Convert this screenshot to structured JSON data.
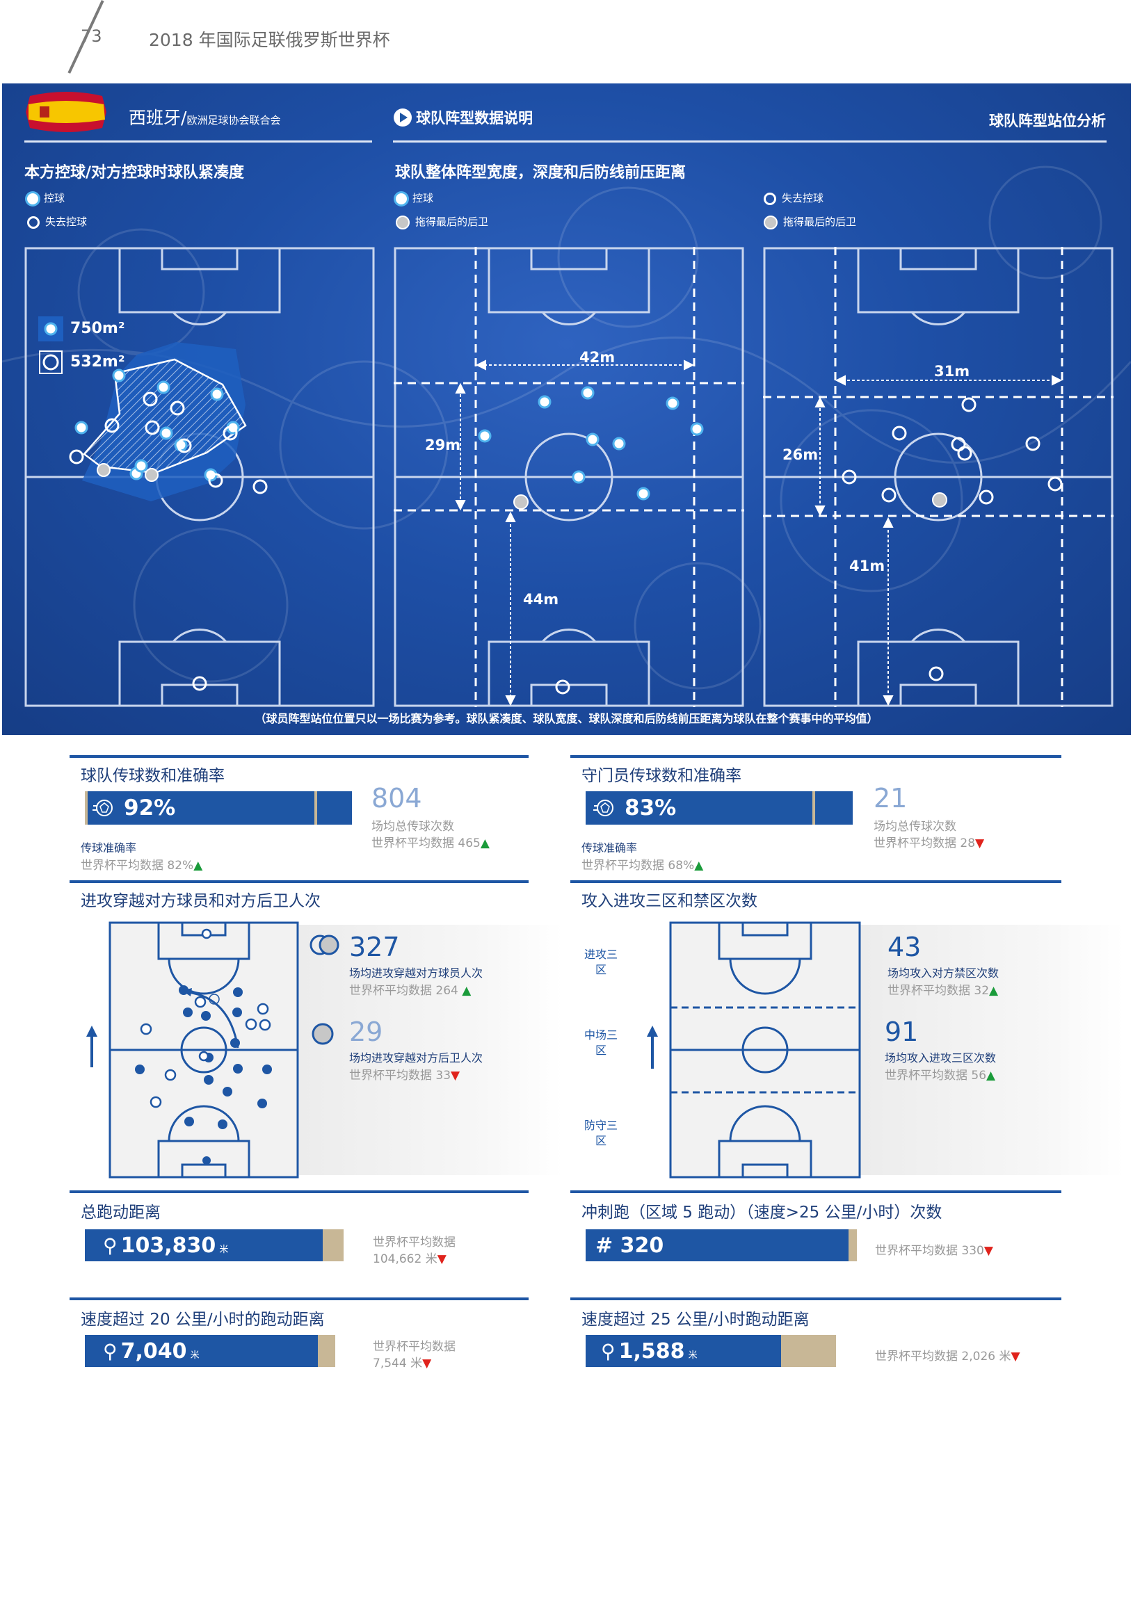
{
  "page": {
    "number": "73",
    "title": "2018 年国际足联俄罗斯世界杯"
  },
  "banner": {
    "team": "西班牙/",
    "confed": "欧洲足球协会联合会",
    "info_link": "球队阵型数据说明",
    "section_right": "球队阵型站位分析",
    "compact_title": "本方控球/对方控球时球队紧凑度",
    "shape_title": "球队整体阵型宽度，深度和后防线前压距离",
    "legend_possession": "控球",
    "legend_no_possession": "失去控球",
    "legend_last_defender": "拖得最后的后卫",
    "area_in": "750m²",
    "area_out": "532m²",
    "width_in": "42m",
    "depth_in": "29m",
    "line_in": "44m",
    "width_out": "31m",
    "depth_out": "26m",
    "line_out": "41m",
    "footnote": "（球员阵型站位位置只以一场比赛为参考。球队紧凑度、球队宽度、球队深度和后防线前压距离为球队在整个赛事中的平均值）"
  },
  "passing": {
    "title": "球队传球数和准确率",
    "pct": "92%",
    "pct_value": 0.92,
    "acc_label": "传球准确率",
    "acc_avg": "世界杯平均数据 82%",
    "total": "804",
    "total_label": "场均总传球次数",
    "total_avg": "世界杯平均数据 465"
  },
  "gk": {
    "title": "守门员传球数和准确率",
    "pct": "83%",
    "pct_value": 0.83,
    "acc_label": "传球准确率",
    "acc_avg": "世界杯平均数据 68%",
    "total": "21",
    "total_label": "场均总传球次数",
    "total_avg": "世界杯平均数据 28"
  },
  "penetration": {
    "title": "进攻穿越对方球员和对方后卫人次",
    "players_num": "327",
    "players_label": "场均进攻穿越对方球员人次",
    "players_avg": "世界杯平均数据 264",
    "defenders_num": "29",
    "defenders_label": "场均进攻穿越对方后卫人次",
    "defenders_avg": "世界杯平均数据 33"
  },
  "thirds": {
    "title": "攻入进攻三区和禁区次数",
    "zone_attack": "进攻三区",
    "zone_mid": "中场三区",
    "zone_def": "防守三区",
    "box_num": "43",
    "box_label": "场均攻入对方禁区次数",
    "box_avg": "世界杯平均数据 32",
    "final_num": "91",
    "final_label": "场均攻入进攻三区次数",
    "final_avg": "世界杯平均数据 56"
  },
  "distance": {
    "title": "总跑动距离",
    "value": "103,830",
    "unit": "米",
    "fill": 0.92,
    "avg_label": "世界杯平均数据",
    "avg_value": "104,662 米"
  },
  "sprints": {
    "title": "冲刺跑（区域 5 跑动）（速度>25 公里/小时）次数",
    "value": "# 320",
    "fill": 0.97,
    "avg": "世界杯平均数据 330"
  },
  "speed20": {
    "title": "速度超过 20 公里/小时的跑动距离",
    "value": "7,040",
    "unit": "米",
    "fill": 0.93,
    "avg_label": "世界杯平均数据",
    "avg_value": "7,544 米"
  },
  "speed25": {
    "title": "速度超过 25 公里/小时跑动距离",
    "value": "1,588",
    "unit": "米",
    "fill": 0.78,
    "avg": "世界杯平均数据 2,026 米"
  },
  "colors": {
    "blue": "#1e56a4",
    "tan": "#c8b796",
    "up": "#1a9b3a",
    "down": "#e0231c"
  }
}
